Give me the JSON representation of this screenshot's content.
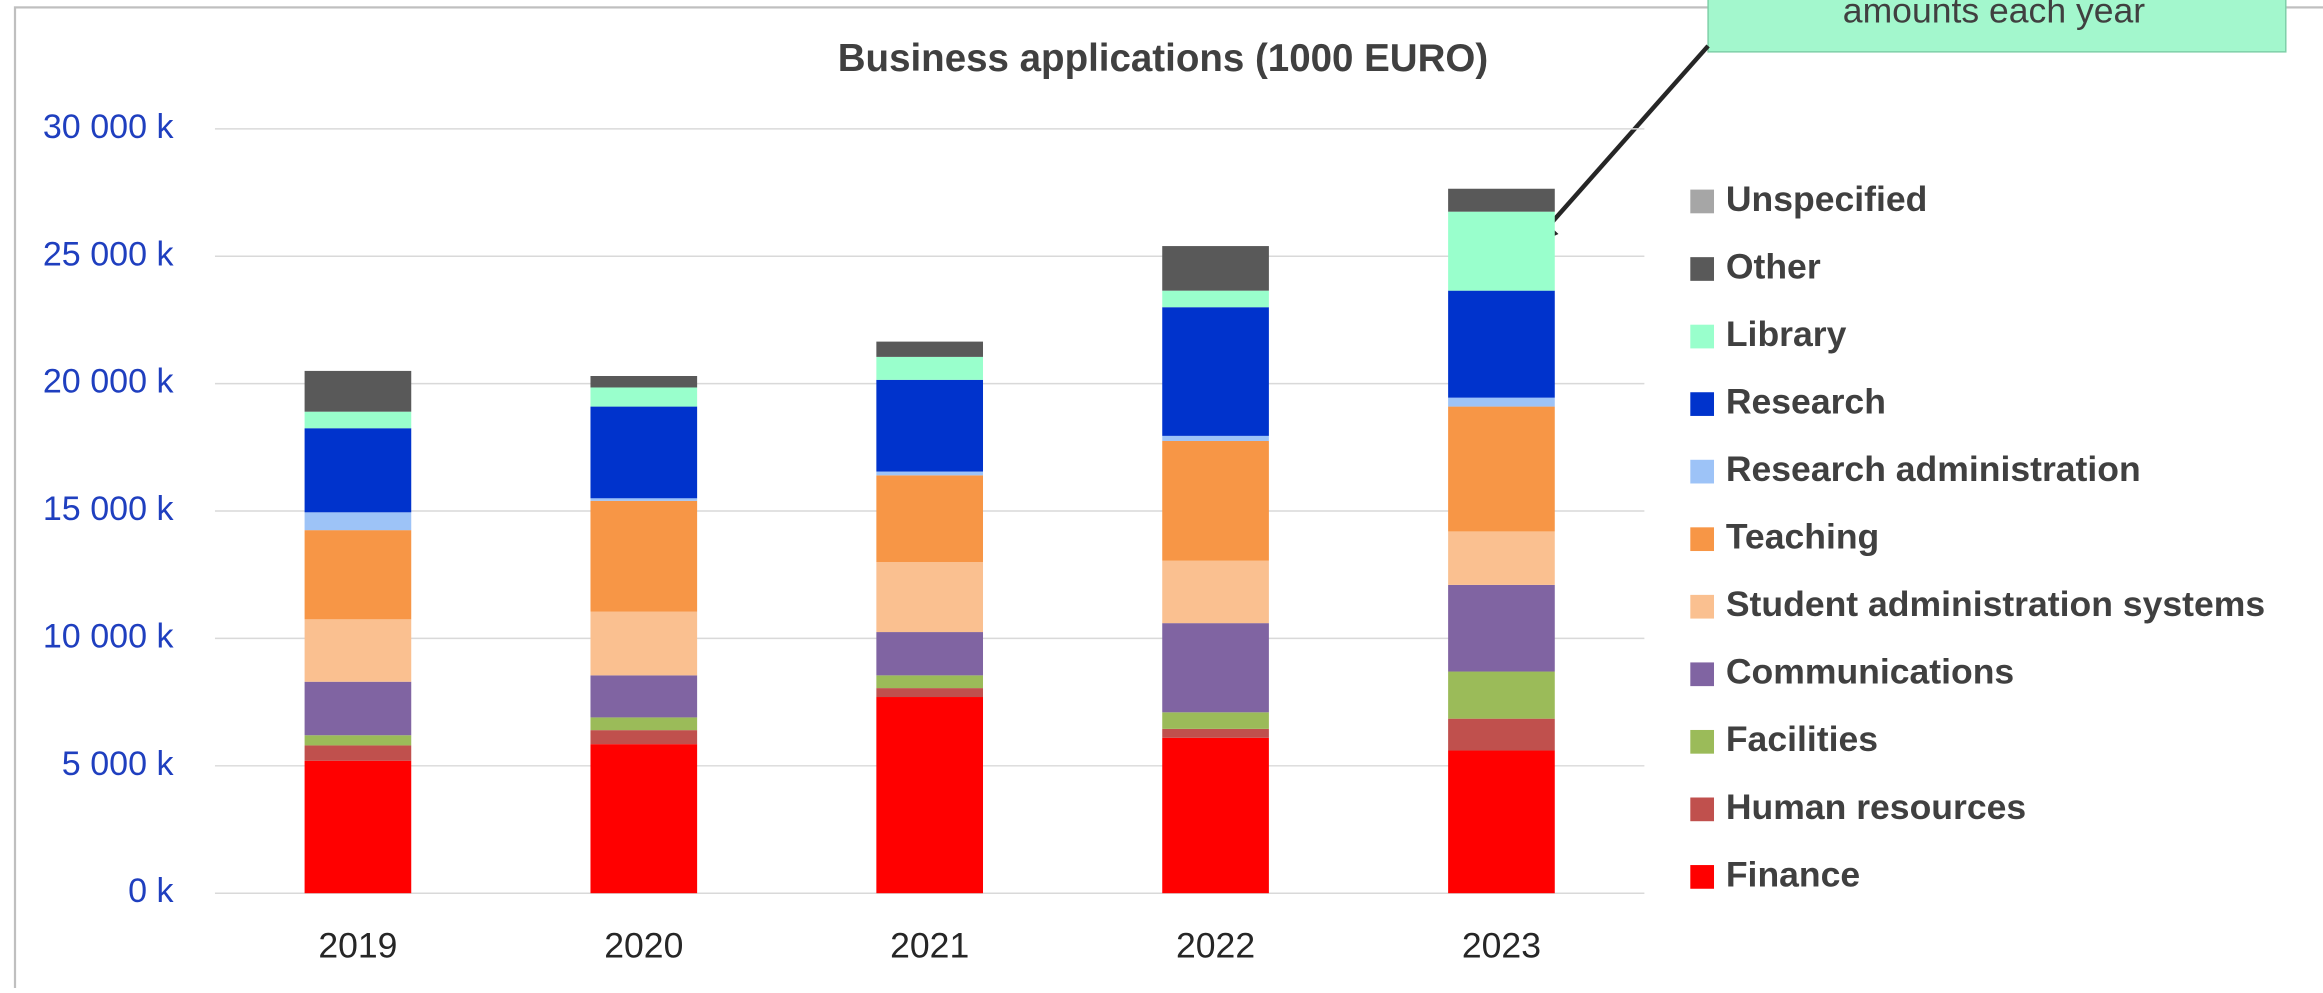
{
  "chart_data": {
    "type": "stacked_bar",
    "title": "Business applications (1000 EURO)",
    "annotation": "amounts each year",
    "categories": [
      "2019",
      "2020",
      "2021",
      "2022",
      "2023"
    ],
    "series": [
      {
        "name": "Finance",
        "color": "#ff0000",
        "values": [
          5200,
          5850,
          7700,
          6100,
          5600
        ]
      },
      {
        "name": "Human resources",
        "color": "#c0504d",
        "values": [
          600,
          550,
          350,
          350,
          1250
        ]
      },
      {
        "name": "Facilities",
        "color": "#9bbb59",
        "values": [
          400,
          500,
          500,
          650,
          1850
        ]
      },
      {
        "name": "Communications",
        "color": "#8064a2",
        "values": [
          2100,
          1650,
          1700,
          3500,
          3400
        ]
      },
      {
        "name": "Student administration systems",
        "color": "#fac090",
        "values": [
          2450,
          2500,
          2750,
          2450,
          2100
        ]
      },
      {
        "name": "Teaching",
        "color": "#f79646",
        "values": [
          3500,
          4350,
          3400,
          4700,
          4900
        ]
      },
      {
        "name": "Research administration",
        "color": "#9dc3f7",
        "values": [
          700,
          100,
          150,
          200,
          350
        ]
      },
      {
        "name": "Research",
        "color": "#0033cc",
        "values": [
          3300,
          3600,
          3600,
          5050,
          4200
        ]
      },
      {
        "name": "Library",
        "color": "#99ffcc",
        "values": [
          650,
          750,
          900,
          650,
          3100
        ]
      },
      {
        "name": "Other",
        "color": "#595959",
        "values": [
          1600,
          450,
          600,
          1750,
          900
        ]
      },
      {
        "name": "Unspecified",
        "color": "#a6a6a6",
        "values": [
          0,
          0,
          0,
          0,
          0
        ]
      }
    ],
    "ylim": [
      0,
      30000
    ],
    "yticks": [
      {
        "value": 0,
        "label": "0 k"
      },
      {
        "value": 5000,
        "label": "5 000 k"
      },
      {
        "value": 10000,
        "label": "10 000 k"
      },
      {
        "value": 15000,
        "label": "15 000 k"
      },
      {
        "value": 20000,
        "label": "20 000 k"
      },
      {
        "value": 25000,
        "label": "25 000 k"
      },
      {
        "value": 30000,
        "label": "30 000 k"
      }
    ],
    "grid": true,
    "legend": "right"
  }
}
